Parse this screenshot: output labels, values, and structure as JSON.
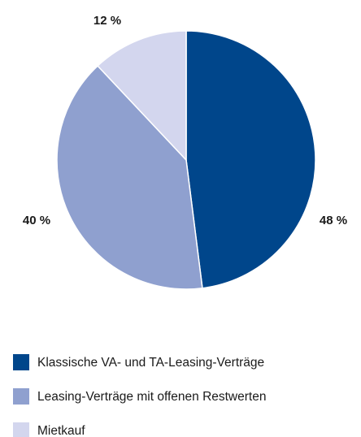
{
  "chart_data": {
    "type": "pie",
    "categories": [
      "Klassische VA- und TA-Leasing-Verträge",
      "Leasing-Verträge mit offenen Restwerten",
      "Mietkauf"
    ],
    "values": [
      48,
      40,
      12
    ],
    "value_labels": [
      "48 %",
      "40 %",
      "12 %"
    ],
    "colors": [
      "#00468b",
      "#8fa0cf",
      "#d3d6ee"
    ]
  }
}
